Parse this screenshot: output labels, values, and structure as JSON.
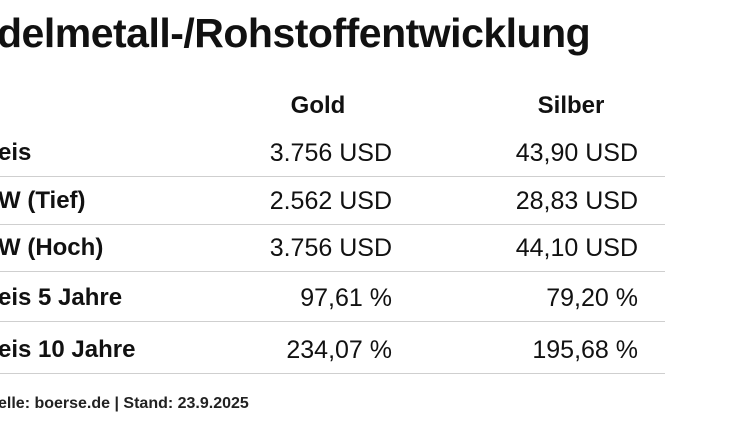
{
  "title": "delmetall-/Rohstoffentwicklung",
  "table": {
    "header": [
      "Gold",
      "Silber"
    ],
    "rows": [
      [
        "eis",
        "3.756 USD",
        "43,90 USD"
      ],
      [
        "W (Tief)",
        "2.562 USD",
        "28,83 USD"
      ],
      [
        "W (Hoch)",
        "3.756 USD",
        "44,10 USD"
      ],
      [
        "eis 5 Jahre",
        "97,61 %",
        "79,20 %"
      ],
      [
        "eis 10 Jahre",
        "234,07 %",
        "195,68 %"
      ]
    ]
  },
  "footer": "elle: boerse.de | Stand: 23.9.2025"
}
